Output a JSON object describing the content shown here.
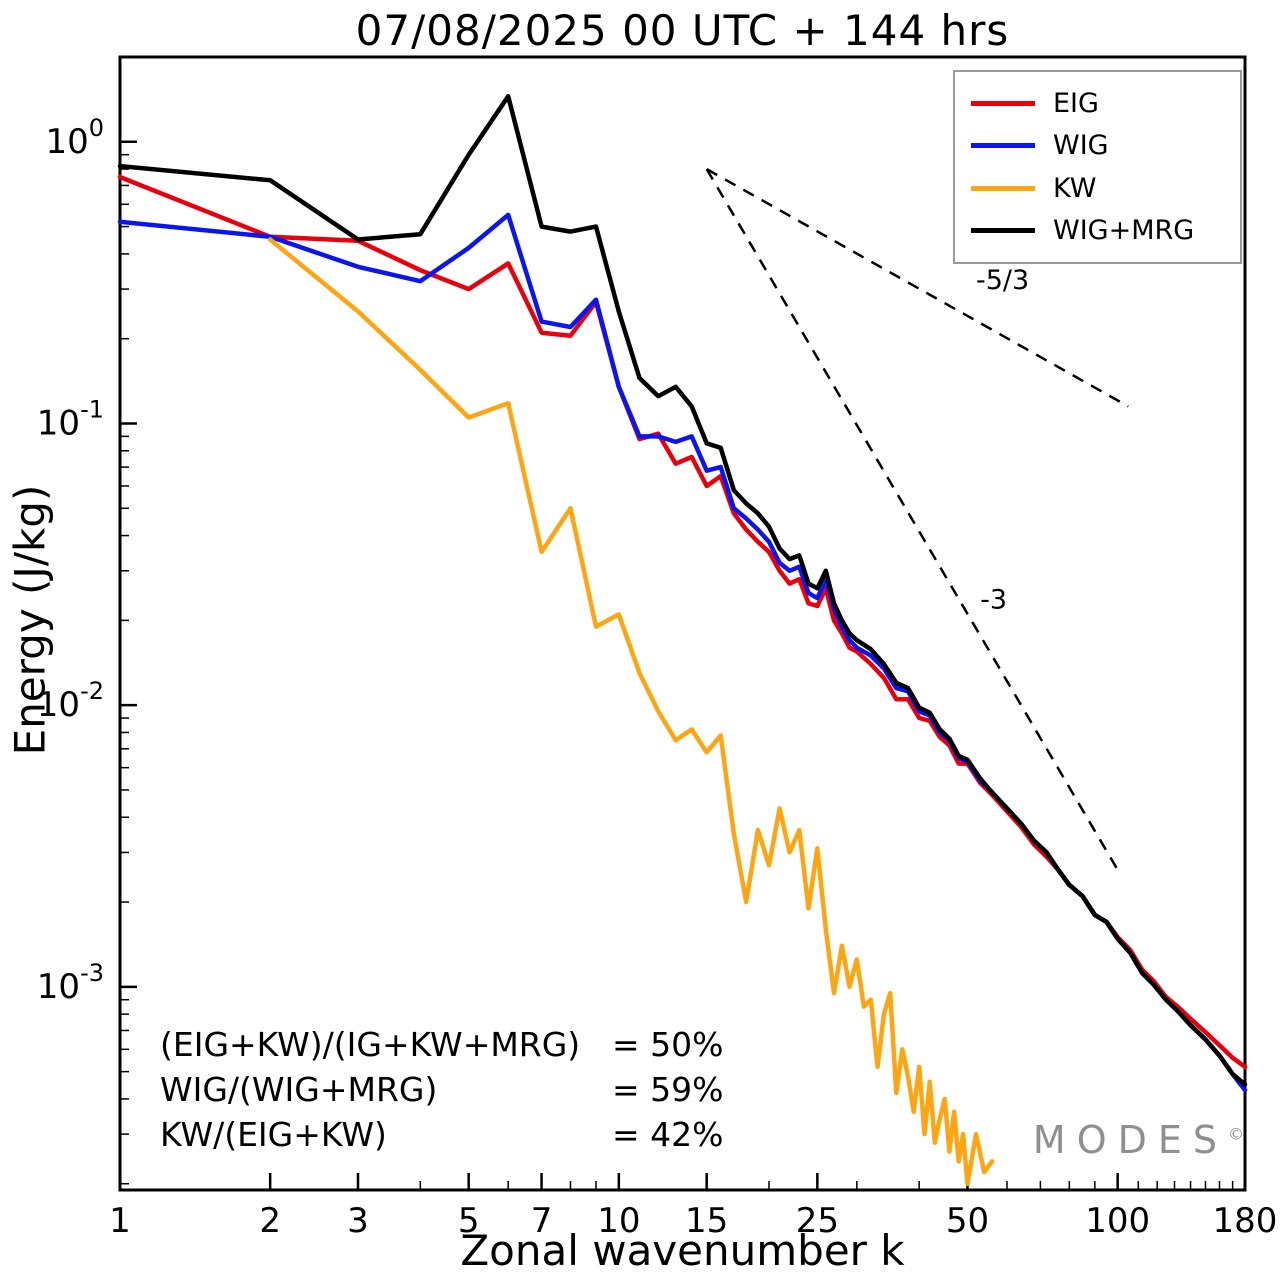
{
  "chart_data": {
    "type": "line",
    "title": "07/08/2025  00 UTC  + 144 hrs",
    "xlabel": "Zonal wavenumber k",
    "ylabel": "Energy (J/kg)",
    "x_scale": "log",
    "y_scale": "log",
    "grid": false,
    "legend_position": "upper right",
    "xlim": [
      1,
      180
    ],
    "ylim": [
      0.00019,
      2.0
    ],
    "x_ticks": [
      1,
      2,
      3,
      5,
      7,
      10,
      15,
      25,
      50,
      100,
      180
    ],
    "y_tick_exponents": [
      0,
      -1,
      -2,
      -3
    ],
    "series": [
      {
        "name": "EIG",
        "color": "#e8000d",
        "points": [
          [
            1,
            0.75
          ],
          [
            2,
            0.46
          ],
          [
            3,
            0.445
          ],
          [
            4,
            0.35
          ],
          [
            5,
            0.3
          ],
          [
            6,
            0.37
          ],
          [
            7,
            0.21
          ],
          [
            8,
            0.205
          ],
          [
            9,
            0.27
          ],
          [
            10,
            0.135
          ],
          [
            11,
            0.088
          ],
          [
            12,
            0.092
          ],
          [
            13,
            0.072
          ],
          [
            14,
            0.076
          ],
          [
            15,
            0.06
          ],
          [
            16,
            0.065
          ],
          [
            17,
            0.048
          ],
          [
            18,
            0.042
          ],
          [
            19,
            0.038
          ],
          [
            20,
            0.035
          ],
          [
            21,
            0.03
          ],
          [
            22,
            0.027
          ],
          [
            23,
            0.028
          ],
          [
            24,
            0.023
          ],
          [
            25,
            0.0225
          ],
          [
            26,
            0.026
          ],
          [
            27,
            0.02
          ],
          [
            28,
            0.018
          ],
          [
            29,
            0.016
          ],
          [
            30,
            0.0155
          ],
          [
            32,
            0.014
          ],
          [
            34,
            0.0125
          ],
          [
            36,
            0.0105
          ],
          [
            38,
            0.0105
          ],
          [
            40,
            0.009
          ],
          [
            42,
            0.0088
          ],
          [
            44,
            0.0077
          ],
          [
            46,
            0.0072
          ],
          [
            48,
            0.0062
          ],
          [
            50,
            0.0062
          ],
          [
            53,
            0.0053
          ],
          [
            56,
            0.0048
          ],
          [
            60,
            0.0042
          ],
          [
            64,
            0.0037
          ],
          [
            68,
            0.0032
          ],
          [
            72,
            0.0029
          ],
          [
            76,
            0.0026
          ],
          [
            80,
            0.0023
          ],
          [
            85,
            0.0021
          ],
          [
            90,
            0.0018
          ],
          [
            95,
            0.0017
          ],
          [
            100,
            0.0015
          ],
          [
            106,
            0.00135
          ],
          [
            112,
            0.00115
          ],
          [
            118,
            0.00105
          ],
          [
            125,
            0.00092
          ],
          [
            132,
            0.00085
          ],
          [
            140,
            0.00077
          ],
          [
            150,
            0.00069
          ],
          [
            160,
            0.00062
          ],
          [
            170,
            0.00056
          ],
          [
            180,
            0.00052
          ]
        ]
      },
      {
        "name": "WIG",
        "color": "#0b16ee",
        "points": [
          [
            1,
            0.52
          ],
          [
            2,
            0.46
          ],
          [
            3,
            0.36
          ],
          [
            4,
            0.32
          ],
          [
            5,
            0.42
          ],
          [
            6,
            0.55
          ],
          [
            7,
            0.23
          ],
          [
            8,
            0.22
          ],
          [
            9,
            0.275
          ],
          [
            10,
            0.135
          ],
          [
            11,
            0.09
          ],
          [
            12,
            0.09
          ],
          [
            13,
            0.086
          ],
          [
            14,
            0.09
          ],
          [
            15,
            0.068
          ],
          [
            16,
            0.07
          ],
          [
            17,
            0.05
          ],
          [
            18,
            0.046
          ],
          [
            19,
            0.042
          ],
          [
            20,
            0.038
          ],
          [
            21,
            0.032
          ],
          [
            22,
            0.03
          ],
          [
            23,
            0.031
          ],
          [
            24,
            0.025
          ],
          [
            25,
            0.024
          ],
          [
            26,
            0.028
          ],
          [
            27,
            0.022
          ],
          [
            28,
            0.019
          ],
          [
            29,
            0.017
          ],
          [
            30,
            0.016
          ],
          [
            32,
            0.015
          ],
          [
            34,
            0.0135
          ],
          [
            36,
            0.0115
          ],
          [
            38,
            0.0112
          ],
          [
            40,
            0.0095
          ],
          [
            42,
            0.0092
          ],
          [
            44,
            0.008
          ],
          [
            46,
            0.0075
          ],
          [
            48,
            0.0065
          ],
          [
            50,
            0.0063
          ],
          [
            53,
            0.0054
          ],
          [
            56,
            0.0049
          ],
          [
            60,
            0.0043
          ],
          [
            64,
            0.0038
          ],
          [
            68,
            0.0033
          ],
          [
            72,
            0.003
          ],
          [
            76,
            0.0026
          ],
          [
            80,
            0.0023
          ],
          [
            85,
            0.0021
          ],
          [
            90,
            0.0018
          ],
          [
            95,
            0.0017
          ],
          [
            100,
            0.00148
          ],
          [
            106,
            0.00132
          ],
          [
            112,
            0.00112
          ],
          [
            118,
            0.00102
          ],
          [
            125,
            0.0009
          ],
          [
            132,
            0.00082
          ],
          [
            140,
            0.00073
          ],
          [
            150,
            0.00065
          ],
          [
            160,
            0.00057
          ],
          [
            170,
            0.00049
          ],
          [
            180,
            0.00043
          ]
        ]
      },
      {
        "name": "KW",
        "color": "#ffa512",
        "points": [
          [
            2,
            0.45
          ],
          [
            3,
            0.25
          ],
          [
            4,
            0.155
          ],
          [
            5,
            0.105
          ],
          [
            6,
            0.118
          ],
          [
            7,
            0.035
          ],
          [
            8,
            0.05
          ],
          [
            9,
            0.019
          ],
          [
            10,
            0.021
          ],
          [
            11,
            0.013
          ],
          [
            12,
            0.0095
          ],
          [
            13,
            0.0075
          ],
          [
            14,
            0.0082
          ],
          [
            15,
            0.0068
          ],
          [
            16,
            0.0078
          ],
          [
            17,
            0.0035
          ],
          [
            18,
            0.002
          ],
          [
            19,
            0.0036
          ],
          [
            20,
            0.0027
          ],
          [
            21,
            0.0043
          ],
          [
            22,
            0.003
          ],
          [
            23,
            0.0036
          ],
          [
            24,
            0.0019
          ],
          [
            25,
            0.0031
          ],
          [
            26,
            0.0016
          ],
          [
            27,
            0.00095
          ],
          [
            28,
            0.0014
          ],
          [
            29,
            0.001
          ],
          [
            30,
            0.00125
          ],
          [
            31,
            0.00085
          ],
          [
            32,
            0.0009
          ],
          [
            33,
            0.00052
          ],
          [
            34,
            0.0008
          ],
          [
            35,
            0.00095
          ],
          [
            36,
            0.00042
          ],
          [
            37,
            0.0006
          ],
          [
            38,
            0.00048
          ],
          [
            39,
            0.00036
          ],
          [
            40,
            0.00052
          ],
          [
            41,
            0.0003
          ],
          [
            42,
            0.00046
          ],
          [
            43,
            0.00028
          ],
          [
            44,
            0.00034
          ],
          [
            45,
            0.0004
          ],
          [
            46,
            0.00026
          ],
          [
            47,
            0.00036
          ],
          [
            48,
            0.00024
          ],
          [
            49,
            0.0003
          ],
          [
            50,
            0.0002
          ],
          [
            52,
            0.0003
          ],
          [
            54,
            0.00022
          ],
          [
            56,
            0.00024
          ]
        ]
      },
      {
        "name": "WIG+MRG",
        "color": "#000000",
        "points": [
          [
            1,
            0.82
          ],
          [
            2,
            0.73
          ],
          [
            3,
            0.45
          ],
          [
            4,
            0.47
          ],
          [
            5,
            0.9
          ],
          [
            6,
            1.45
          ],
          [
            7,
            0.5
          ],
          [
            8,
            0.48
          ],
          [
            9,
            0.5
          ],
          [
            10,
            0.25
          ],
          [
            11,
            0.145
          ],
          [
            12,
            0.125
          ],
          [
            13,
            0.135
          ],
          [
            14,
            0.115
          ],
          [
            15,
            0.085
          ],
          [
            16,
            0.082
          ],
          [
            17,
            0.058
          ],
          [
            18,
            0.052
          ],
          [
            19,
            0.048
          ],
          [
            20,
            0.043
          ],
          [
            21,
            0.036
          ],
          [
            22,
            0.033
          ],
          [
            23,
            0.034
          ],
          [
            24,
            0.027
          ],
          [
            25,
            0.026
          ],
          [
            26,
            0.03
          ],
          [
            27,
            0.023
          ],
          [
            28,
            0.02
          ],
          [
            29,
            0.018
          ],
          [
            30,
            0.017
          ],
          [
            32,
            0.0158
          ],
          [
            34,
            0.014
          ],
          [
            36,
            0.012
          ],
          [
            38,
            0.0115
          ],
          [
            40,
            0.0098
          ],
          [
            42,
            0.0094
          ],
          [
            44,
            0.0082
          ],
          [
            46,
            0.0076
          ],
          [
            48,
            0.0066
          ],
          [
            50,
            0.0064
          ],
          [
            53,
            0.0055
          ],
          [
            56,
            0.0049
          ],
          [
            60,
            0.0043
          ],
          [
            64,
            0.0038
          ],
          [
            68,
            0.0033
          ],
          [
            72,
            0.003
          ],
          [
            76,
            0.0026
          ],
          [
            80,
            0.0023
          ],
          [
            85,
            0.0021
          ],
          [
            90,
            0.0018
          ],
          [
            95,
            0.0017
          ],
          [
            100,
            0.00148
          ],
          [
            106,
            0.00132
          ],
          [
            112,
            0.00112
          ],
          [
            118,
            0.00102
          ],
          [
            125,
            0.0009
          ],
          [
            132,
            0.00082
          ],
          [
            140,
            0.00073
          ],
          [
            150,
            0.00065
          ],
          [
            160,
            0.00057
          ],
          [
            170,
            0.00049
          ],
          [
            180,
            0.00045
          ]
        ]
      }
    ],
    "reference_lines": [
      {
        "label": "-5/3",
        "x": [
          15,
          105
        ],
        "y": [
          0.8,
          0.115
        ],
        "label_at": [
          52,
          0.3
        ]
      },
      {
        "label": "-3",
        "x": [
          15,
          100
        ],
        "y": [
          0.8,
          0.0026
        ],
        "label_at": [
          53,
          0.022
        ]
      }
    ]
  },
  "ratios": [
    {
      "expr": "(EIG+KW)/(IG+KW+MRG)",
      "value": "= 50%"
    },
    {
      "expr": "WIG/(WIG+MRG)",
      "value": "= 59%"
    },
    {
      "expr": "KW/(EIG+KW)",
      "value": "= 42%"
    }
  ],
  "watermark": {
    "text": "MODES",
    "symbol": "©"
  }
}
